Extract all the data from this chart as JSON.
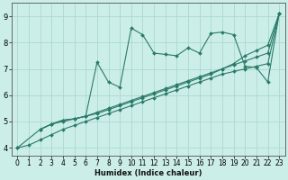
{
  "xlabel": "Humidex (Indice chaleur)",
  "bg_color": "#cceee8",
  "line_color": "#2a7a6a",
  "grid_color": "#aad8d0",
  "xlim": [
    -0.5,
    23.5
  ],
  "ylim": [
    3.7,
    9.5
  ],
  "xticks": [
    0,
    1,
    2,
    3,
    4,
    5,
    6,
    7,
    8,
    9,
    10,
    11,
    12,
    13,
    14,
    15,
    16,
    17,
    18,
    19,
    20,
    21,
    22,
    23
  ],
  "yticks": [
    4,
    5,
    6,
    7,
    8,
    9
  ],
  "series": [
    {
      "x": [
        0,
        1,
        2,
        3,
        4,
        5,
        6,
        7,
        8,
        9,
        10,
        11,
        12,
        13,
        14,
        15,
        16,
        17,
        18,
        19,
        20,
        21,
        22,
        23
      ],
      "y": [
        4.0,
        4.1,
        4.3,
        4.5,
        4.7,
        4.85,
        5.0,
        5.15,
        5.3,
        5.45,
        5.6,
        5.75,
        5.9,
        6.05,
        6.2,
        6.35,
        6.5,
        6.65,
        6.8,
        6.9,
        7.0,
        7.1,
        7.2,
        9.1
      ]
    },
    {
      "x": [
        0,
        2,
        3,
        4,
        5,
        6,
        7,
        8,
        9,
        10,
        11,
        12,
        13,
        14,
        15,
        16,
        17,
        18,
        19,
        20,
        21,
        22,
        23
      ],
      "y": [
        4.0,
        4.7,
        4.9,
        5.0,
        5.1,
        5.2,
        5.35,
        5.5,
        5.65,
        5.8,
        5.95,
        6.1,
        6.25,
        6.4,
        6.55,
        6.7,
        6.85,
        7.0,
        7.15,
        7.3,
        7.45,
        7.6,
        9.1
      ]
    },
    {
      "x": [
        2,
        3,
        4,
        5,
        6,
        7,
        8,
        9,
        10,
        11,
        12,
        13,
        14,
        15,
        16,
        17,
        18,
        19,
        20,
        21,
        22,
        23
      ],
      "y": [
        4.7,
        4.9,
        5.05,
        5.1,
        5.2,
        5.3,
        5.45,
        5.6,
        5.75,
        5.9,
        6.05,
        6.2,
        6.35,
        6.5,
        6.65,
        6.8,
        7.0,
        7.2,
        7.5,
        7.7,
        7.9,
        9.1
      ]
    },
    {
      "x": [
        2,
        3,
        4,
        5,
        6,
        7,
        8,
        9,
        10,
        11,
        12,
        13,
        14,
        15,
        16,
        17,
        18,
        19,
        20,
        21,
        22,
        23
      ],
      "y": [
        4.7,
        4.9,
        5.05,
        5.1,
        5.2,
        7.25,
        6.5,
        6.3,
        8.55,
        8.3,
        7.6,
        7.55,
        7.5,
        7.8,
        7.6,
        8.35,
        8.4,
        8.3,
        7.1,
        7.05,
        6.5,
        9.1
      ]
    }
  ]
}
